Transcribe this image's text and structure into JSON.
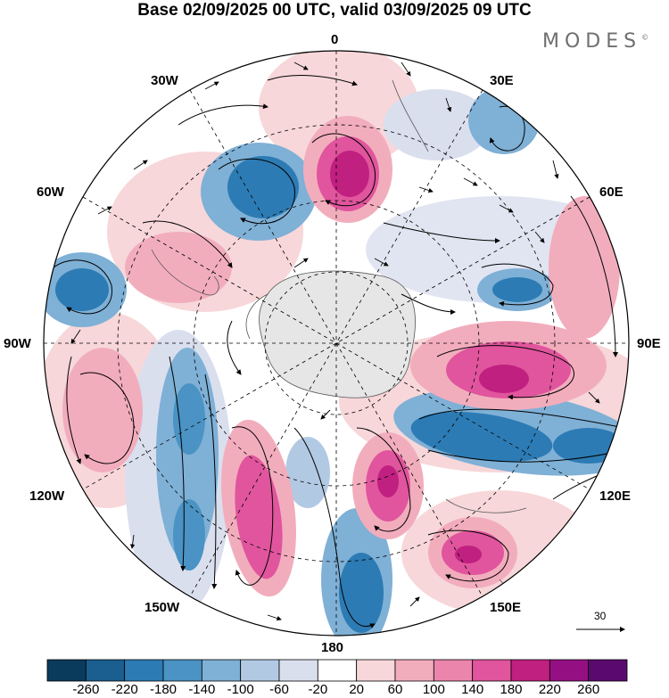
{
  "title": "Base 02/09/2025 00 UTC, valid 03/09/2025 09 UTC",
  "brand": "MODES",
  "brand_mark": "©",
  "longitude_labels": {
    "top": "0",
    "bottom": "180",
    "left": "90W",
    "right": "90E",
    "w30": "30W",
    "e30": "30E",
    "w60": "60W",
    "e60": "60E",
    "w120": "120W",
    "e120": "120E",
    "w150": "150W",
    "e150": "150E"
  },
  "vector_scale_label": "30",
  "colorbar": {
    "ticks": [
      "-260",
      "-220",
      "-180",
      "-140",
      "-100",
      "-60",
      "-20",
      "20",
      "60",
      "100",
      "140",
      "180",
      "220",
      "260"
    ],
    "colors": [
      "#0a3a5c",
      "#1a5f8f",
      "#2c7bb4",
      "#4a93c4",
      "#7fb0d6",
      "#b2c9e3",
      "#dadfee",
      "#ffffff",
      "#f7d7d9",
      "#f2adbd",
      "#ec85ac",
      "#e0559d",
      "#c0207f",
      "#941082",
      "#5a0a6e"
    ]
  },
  "anomaly_colors": {
    "deep_blue": "#2c7bb4",
    "mid_blue": "#7fb0d6",
    "light_blue": "#dadfee",
    "light_pink": "#f2adbd",
    "mid_pink": "#e0559d",
    "deep_magenta": "#c0207f"
  }
}
